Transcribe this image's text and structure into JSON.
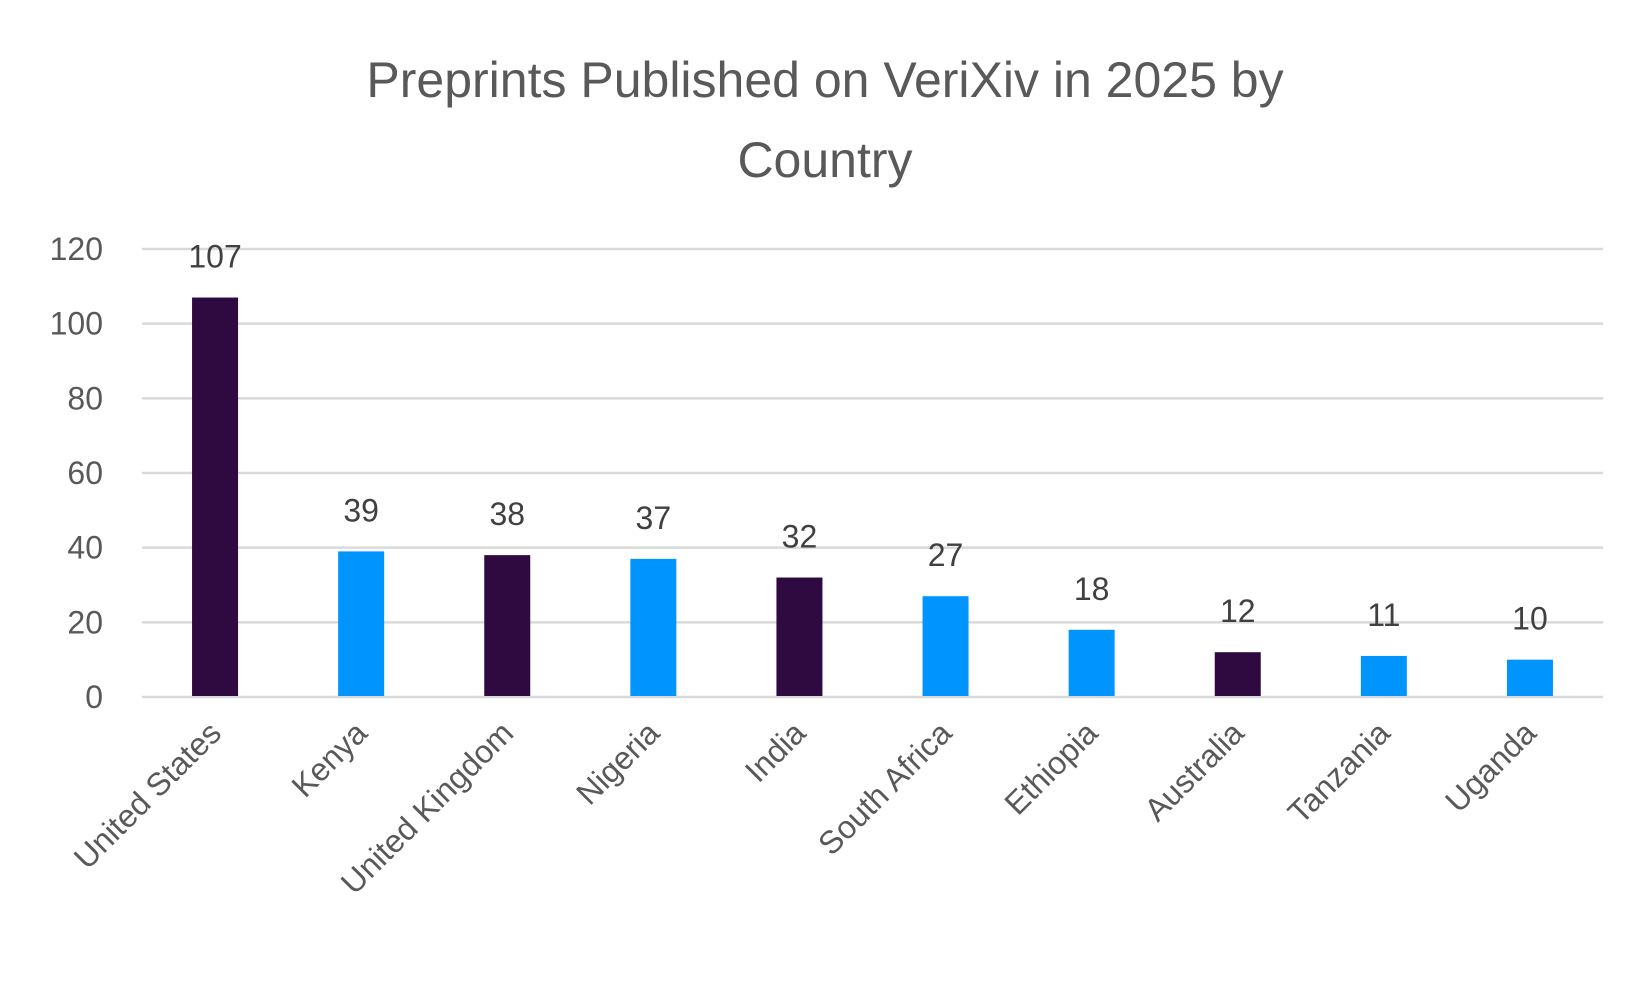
{
  "chart_data": {
    "type": "bar",
    "title": "Preprints Published on VeriXiv in 2025 by Country",
    "title_lines": [
      "Preprints Published on VeriXiv in 2025 by",
      "Country"
    ],
    "xlabel": "",
    "ylabel": "",
    "ylim": [
      0,
      120
    ],
    "yticks": [
      0,
      20,
      40,
      60,
      80,
      100,
      120
    ],
    "grid": true,
    "legend": "none",
    "categories": [
      "United States",
      "Kenya",
      "United Kingdom",
      "Nigeria",
      "India",
      "South Africa",
      "Ethiopia",
      "Australia",
      "Tanzania",
      "Uganda"
    ],
    "values": [
      107,
      39,
      38,
      37,
      32,
      27,
      18,
      12,
      11,
      10
    ],
    "bar_colors": [
      "#2E0A40",
      "#0094FF",
      "#2E0A40",
      "#0094FF",
      "#2E0A40",
      "#0094FF",
      "#0094FF",
      "#2E0A40",
      "#0094FF",
      "#0094FF"
    ],
    "data_labels": [
      "107",
      "39",
      "38",
      "37",
      "32",
      "27",
      "18",
      "12",
      "11",
      "10"
    ]
  }
}
